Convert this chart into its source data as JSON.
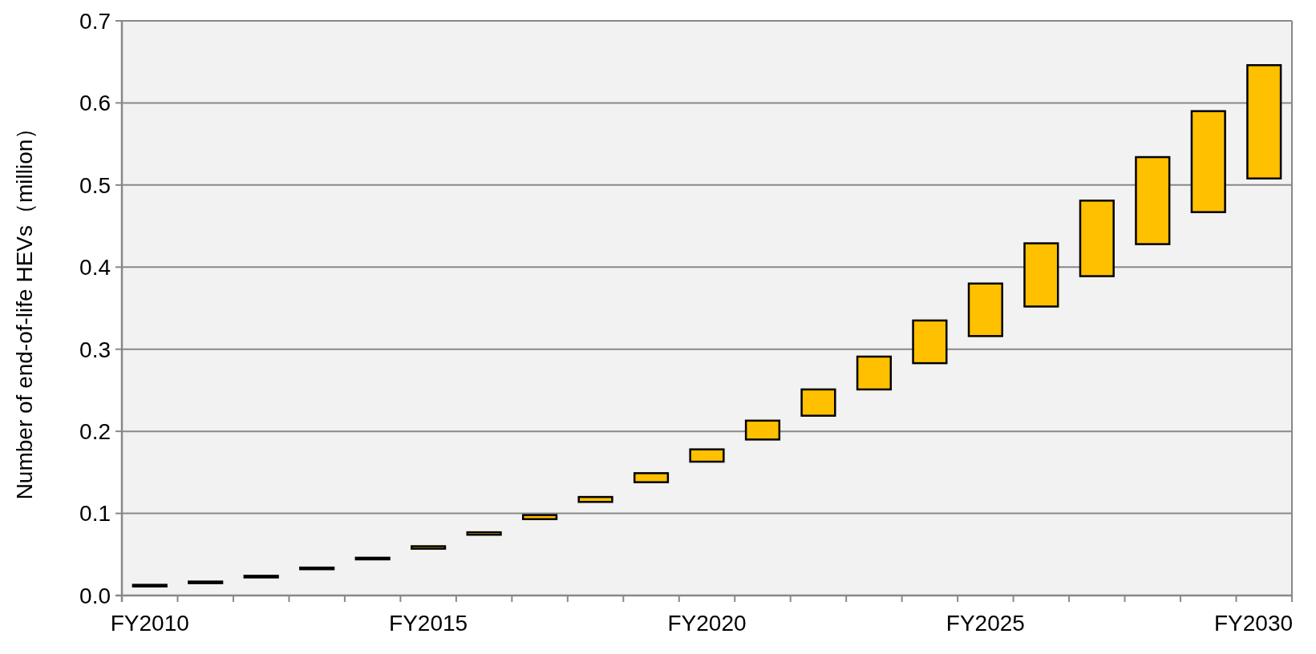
{
  "chart_data": {
    "type": "bar",
    "ylabel": "Number of end-of-life HEVs（million）",
    "categories": [
      "FY2010",
      null,
      null,
      null,
      null,
      "FY2015",
      null,
      null,
      null,
      null,
      "FY2020",
      null,
      null,
      null,
      null,
      "FY2025",
      null,
      null,
      null,
      null,
      "FY2030"
    ],
    "base": [
      0.011,
      0.015,
      0.022,
      0.032,
      0.044,
      0.057,
      0.074,
      0.093,
      0.114,
      0.138,
      0.163,
      0.19,
      0.219,
      0.251,
      0.283,
      0.316,
      0.352,
      0.389,
      0.428,
      0.467,
      0.508
    ],
    "values": [
      0.002,
      0.002,
      0.002,
      0.002,
      0.002,
      0.003,
      0.003,
      0.005,
      0.006,
      0.011,
      0.015,
      0.023,
      0.032,
      0.04,
      0.052,
      0.064,
      0.077,
      0.092,
      0.106,
      0.123,
      0.138
    ],
    "color": "#ffc000",
    "ylim": [
      0,
      0.7
    ],
    "yticks": [
      {
        "value": 0,
        "label": "0.0"
      },
      0.1,
      0.2,
      0.3,
      0.4,
      0.5,
      0.6,
      0.7
    ],
    "grid": "y"
  }
}
